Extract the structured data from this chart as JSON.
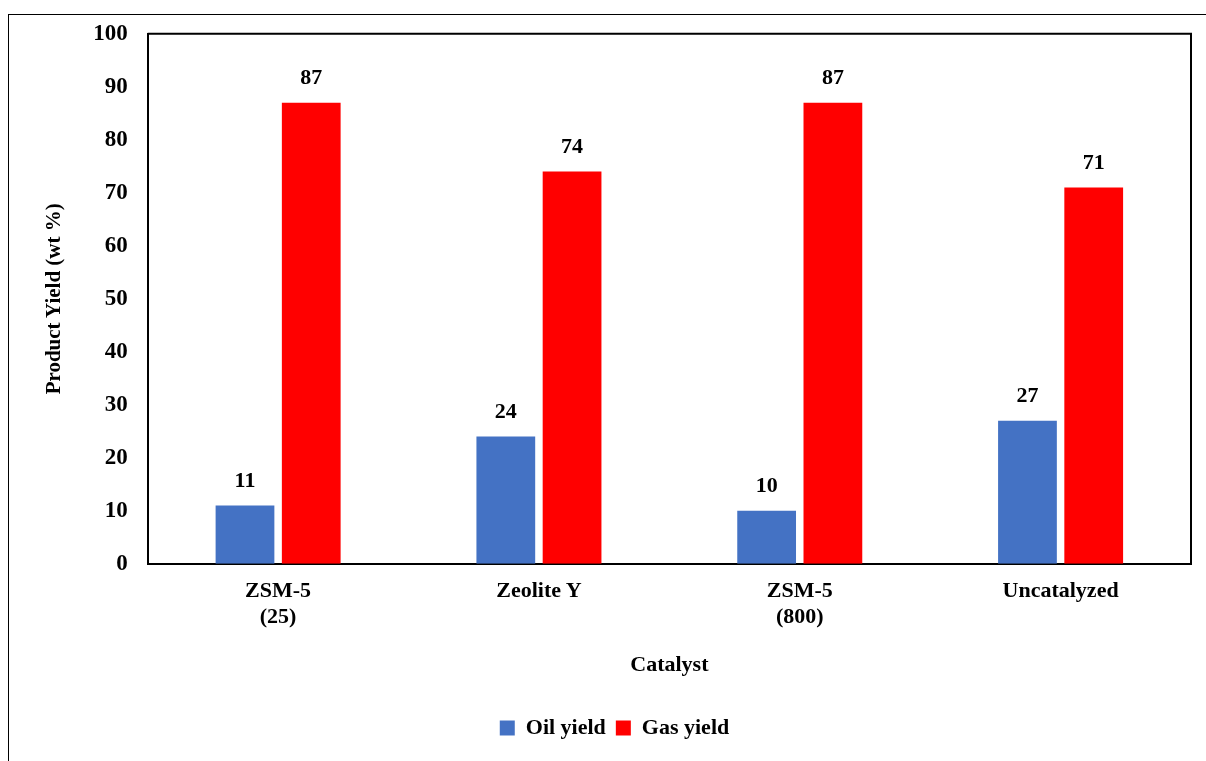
{
  "chart_data": {
    "type": "bar",
    "xlabel": "Catalyst",
    "ylabel": "Product Yield (wt %)",
    "categories": [
      "ZSM-5\n(25)",
      "Zeolite Y",
      "ZSM-5\n(800)",
      "Uncatalyzed"
    ],
    "series": [
      {
        "name": "Oil yield",
        "color": "#4472c4",
        "values": [
          11,
          24,
          10,
          27
        ]
      },
      {
        "name": "Gas yield",
        "color": "#ff0000",
        "values": [
          87,
          74,
          87,
          71
        ]
      }
    ],
    "ylim": [
      0,
      100
    ],
    "yticks": [
      0,
      10,
      20,
      30,
      40,
      50,
      60,
      70,
      80,
      90,
      100
    ],
    "legend": "bottom",
    "data_labels": true
  }
}
